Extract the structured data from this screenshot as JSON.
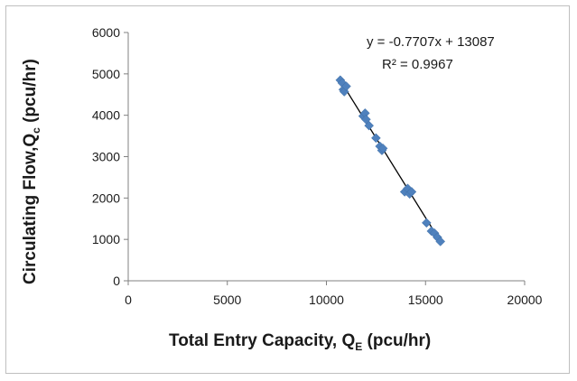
{
  "chart_data": {
    "type": "scatter",
    "xlabel": {
      "main": "Total Entry Capacity, Q",
      "sub": "E",
      "tail": " (pcu/hr)"
    },
    "ylabel": {
      "main": "Circulating Flow,Q",
      "sub": "c",
      "tail": " (pcu/hr)"
    },
    "xlim": [
      0,
      20000
    ],
    "ylim": [
      0,
      6000
    ],
    "x_ticks": [
      "0",
      "5000",
      "10000",
      "15000",
      "20000"
    ],
    "y_ticks": [
      "0",
      "1000",
      "2000",
      "3000",
      "4000",
      "5000",
      "6000"
    ],
    "grid": false,
    "legend": "none",
    "marker_color": "#4f81bd",
    "trendline_color": "#000000",
    "equation": "y = -0.7707x + 13087",
    "r_squared": "R² = 0.9967",
    "trendline": {
      "slope": -0.7707,
      "intercept": 13087,
      "x_range": [
        10700,
        15750
      ]
    },
    "points": [
      {
        "x": 10700,
        "y": 4850
      },
      {
        "x": 10800,
        "y": 4780
      },
      {
        "x": 10850,
        "y": 4620
      },
      {
        "x": 10900,
        "y": 4570
      },
      {
        "x": 11000,
        "y": 4700
      },
      {
        "x": 11850,
        "y": 3980
      },
      {
        "x": 11950,
        "y": 4050
      },
      {
        "x": 12000,
        "y": 3900
      },
      {
        "x": 12150,
        "y": 3750
      },
      {
        "x": 12500,
        "y": 3450
      },
      {
        "x": 12700,
        "y": 3250
      },
      {
        "x": 12800,
        "y": 3150
      },
      {
        "x": 12850,
        "y": 3200
      },
      {
        "x": 13950,
        "y": 2150
      },
      {
        "x": 14100,
        "y": 2230
      },
      {
        "x": 14200,
        "y": 2100
      },
      {
        "x": 14300,
        "y": 2150
      },
      {
        "x": 15050,
        "y": 1400
      },
      {
        "x": 15300,
        "y": 1200
      },
      {
        "x": 15450,
        "y": 1150
      },
      {
        "x": 15600,
        "y": 1050
      },
      {
        "x": 15750,
        "y": 950
      }
    ]
  }
}
